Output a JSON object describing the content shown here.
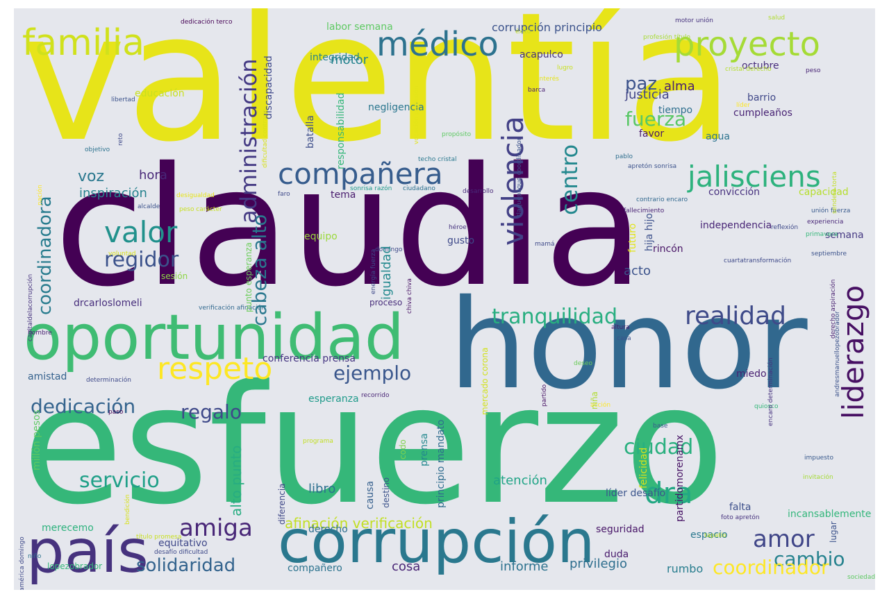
{
  "words": [
    {
      "text": "valentía",
      "color": "#e7e419"
    },
    {
      "text": "claudia",
      "color": "#440154"
    },
    {
      "text": "esfuerzo",
      "color": "#35b779"
    },
    {
      "text": "honor",
      "color": "#31688e"
    },
    {
      "text": "oportunidad",
      "color": "#3fbc73"
    },
    {
      "text": "corrupción",
      "color": "#2a788e"
    },
    {
      "text": "país",
      "color": "#46327e"
    },
    {
      "text": "familia",
      "color": "#d0e11c"
    },
    {
      "text": "médico",
      "color": "#2c728e"
    },
    {
      "text": "proyecto",
      "color": "#a5db36"
    },
    {
      "text": "compañera",
      "color": "#365c8d"
    },
    {
      "text": "jalisciens",
      "color": "#2db27d"
    },
    {
      "text": "valor",
      "color": "#21918c"
    },
    {
      "text": "respeto",
      "color": "#fde725"
    },
    {
      "text": "tranquilidad",
      "color": "#28ae80"
    },
    {
      "text": "realidad",
      "color": "#3e4a89"
    },
    {
      "text": "liderazgo",
      "color": "#471063"
    },
    {
      "text": "violencia",
      "color": "#424086"
    },
    {
      "text": "administración",
      "color": "#443a83"
    },
    {
      "text": "coordinadora",
      "color": "#287c8e"
    },
    {
      "text": "cabeza alto",
      "color": "#2a788e"
    },
    {
      "text": "centro",
      "color": "#23888e"
    },
    {
      "text": "regidor",
      "color": "#3b528b"
    },
    {
      "text": "ejemplo",
      "color": "#39568c"
    },
    {
      "text": "dedicación",
      "color": "#33638d"
    },
    {
      "text": "regalo",
      "color": "#3e4989"
    },
    {
      "text": "amiga",
      "color": "#482677"
    },
    {
      "text": "amor",
      "color": "#404688"
    },
    {
      "text": "dra",
      "color": "#22a884"
    },
    {
      "text": "ciudad",
      "color": "#2ab07f"
    },
    {
      "text": "servicio",
      "color": "#1fa088"
    },
    {
      "text": "solidaridad",
      "color": "#33638d"
    },
    {
      "text": "cambio",
      "color": "#26828e"
    },
    {
      "text": "coordinador",
      "color": "#fde725"
    },
    {
      "text": "fuerza",
      "color": "#58c765"
    },
    {
      "text": "paz",
      "color": "#3b528b"
    },
    {
      "text": "alma",
      "color": "#481f70"
    },
    {
      "text": "justicia",
      "color": "#414487"
    },
    {
      "text": "voz",
      "color": "#2a788e"
    },
    {
      "text": "hora",
      "color": "#482878"
    },
    {
      "text": "inspiración",
      "color": "#26828e"
    },
    {
      "text": "afinación verificación",
      "color": "#c2df23"
    },
    {
      "text": "alto punto",
      "color": "#27ad81"
    },
    {
      "text": "acto",
      "color": "#3b528b"
    },
    {
      "text": "atención",
      "color": "#20a486"
    },
    {
      "text": "libro",
      "color": "#2d708e"
    },
    {
      "text": "privilegio",
      "color": "#2e6e8e"
    },
    {
      "text": "informe",
      "color": "#2c728e"
    },
    {
      "text": "cosa",
      "color": "#482475"
    },
    {
      "text": "rumbo",
      "color": "#287d8e"
    },
    {
      "text": "motor",
      "color": "#25838e"
    },
    {
      "text": "corrupción principio",
      "color": "#3b528b"
    },
    {
      "text": "labor semana",
      "color": "#5ec962"
    },
    {
      "text": "integridad",
      "color": "#26828e"
    },
    {
      "text": "acapulco",
      "color": "#46337f"
    },
    {
      "text": "octubre",
      "color": "#472d7b"
    },
    {
      "text": "barrio",
      "color": "#3f4788"
    },
    {
      "text": "cumpleaños",
      "color": "#482374"
    },
    {
      "text": "tiempo",
      "color": "#2e6f8e"
    },
    {
      "text": "favor",
      "color": "#481769"
    },
    {
      "text": "agua",
      "color": "#2c738e"
    },
    {
      "text": "negligencia",
      "color": "#2a768e"
    },
    {
      "text": "educación",
      "color": "#c8e020"
    },
    {
      "text": "batalla",
      "color": "#3d4e8a"
    },
    {
      "text": "convicción",
      "color": "#46307e"
    },
    {
      "text": "capacidad",
      "color": "#b5de2b"
    },
    {
      "text": "tema",
      "color": "#481b6d"
    },
    {
      "text": "independencia",
      "color": "#482576"
    },
    {
      "text": "semana",
      "color": "#453882"
    },
    {
      "text": "rincón",
      "color": "#471365"
    },
    {
      "text": "gusto",
      "color": "#3e4989"
    },
    {
      "text": "equipo",
      "color": "#9bd93c"
    },
    {
      "text": "igualdad",
      "color": "#23898e"
    },
    {
      "text": "amistad",
      "color": "#34618d"
    },
    {
      "text": "conferencia prensa",
      "color": "#453581"
    },
    {
      "text": "esperanza",
      "color": "#1f9a8a"
    },
    {
      "text": "miedo",
      "color": "#482071"
    },
    {
      "text": "felicidad",
      "color": "#d8e219"
    },
    {
      "text": "líder desafío",
      "color": "#3a548c"
    },
    {
      "text": "falta",
      "color": "#3c4f8a"
    },
    {
      "text": "merecemo",
      "color": "#2db27d"
    },
    {
      "text": "equitativo",
      "color": "#3f4889"
    },
    {
      "text": "derecho",
      "color": "#2e6e8e"
    },
    {
      "text": "seguridad",
      "color": "#481668"
    },
    {
      "text": "espacio",
      "color": "#2a788e"
    },
    {
      "text": "incansablemente",
      "color": "#32b67a"
    },
    {
      "text": "compañero",
      "color": "#2c738e"
    },
    {
      "text": "duda",
      "color": "#481a6c"
    },
    {
      "text": "lopezobrador",
      "color": "#35b779"
    },
    {
      "text": "drcarloslomeli",
      "color": "#472e7c"
    },
    {
      "text": "sesión",
      "color": "#8ed645"
    },
    {
      "text": "millón pesos",
      "color": "#5ec962"
    },
    {
      "text": "discapacidad",
      "color": "#3e4989"
    },
    {
      "text": "responsabilidad",
      "color": "#34b679"
    },
    {
      "text": "futuro",
      "color": "#e2e418"
    },
    {
      "text": "hija hijo",
      "color": "#3c508b"
    },
    {
      "text": "punto esperanza",
      "color": "#6ccd5a"
    },
    {
      "text": "mercado corona",
      "color": "#d2e21b"
    },
    {
      "text": "principio mandato",
      "color": "#2f6c8e"
    },
    {
      "text": "partidomorenamx",
      "color": "#471365"
    },
    {
      "text": "niña",
      "color": "#b0dd2f"
    },
    {
      "text": "prensa",
      "color": "#23888e"
    },
    {
      "text": "causa",
      "color": "#355f8d"
    },
    {
      "text": "diferencia",
      "color": "#3f4788"
    },
    {
      "text": "destino",
      "color": "#3b528b"
    },
    {
      "text": "codo",
      "color": "#7fd34e"
    },
    {
      "text": "lugar",
      "color": "#3b528b"
    },
    {
      "text": "chiva chiva",
      "color": "#471164"
    },
    {
      "text": "proceso",
      "color": "#472c7a"
    },
    {
      "text": "dedicación terco",
      "color": "#440154"
    },
    {
      "text": "éxito",
      "color": "#c2df23"
    },
    {
      "text": "motor unión",
      "color": "#46327e"
    },
    {
      "text": "profesión título",
      "color": "#a8db34"
    },
    {
      "text": "salud",
      "color": "#b0dd2f"
    },
    {
      "text": "cristal derecho",
      "color": "#b5de2b"
    },
    {
      "text": "peso",
      "color": "#482475"
    },
    {
      "text": "lugro",
      "color": "#c8e020"
    },
    {
      "text": "interés",
      "color": "#e5e419"
    },
    {
      "text": "barca",
      "color": "#481f70"
    },
    {
      "text": "libertad",
      "color": "#3b528b"
    },
    {
      "text": "reto",
      "color": "#3e4989"
    },
    {
      "text": "propósito",
      "color": "#5ec962"
    },
    {
      "text": "líder",
      "color": "#fde725"
    },
    {
      "text": "sendero torta",
      "color": "#c2df23"
    },
    {
      "text": "objetivo",
      "color": "#2c728e"
    },
    {
      "text": "pablo",
      "color": "#2e6e8e"
    },
    {
      "text": "apretón sonrisa",
      "color": "#3b528b"
    },
    {
      "text": "techo cristal",
      "color": "#2a788e"
    },
    {
      "text": "sonrisa razón",
      "color": "#1f9a8a"
    },
    {
      "text": "ciudadano",
      "color": "#2d708e"
    },
    {
      "text": "faro",
      "color": "#3e4989"
    },
    {
      "text": "desarrollo",
      "color": "#482878"
    },
    {
      "text": "contrario encaro",
      "color": "#31688e"
    },
    {
      "text": "fallecimiento",
      "color": "#482173"
    },
    {
      "text": "alcalde",
      "color": "#3b528b"
    },
    {
      "text": "héroe",
      "color": "#46327e"
    },
    {
      "text": "reflexión",
      "color": "#3e4989"
    },
    {
      "text": "unión fuerza",
      "color": "#38598c"
    },
    {
      "text": "experiencia",
      "color": "#482677"
    },
    {
      "text": "primavera",
      "color": "#35b779"
    },
    {
      "text": "domingo",
      "color": "#3e4a89"
    },
    {
      "text": "voluntad",
      "color": "#d8e219"
    },
    {
      "text": "mamá",
      "color": "#3e4989"
    },
    {
      "text": "septiembre",
      "color": "#3b528b"
    },
    {
      "text": "cuartatransformación",
      "color": "#3e4989"
    },
    {
      "text": "verificación afinación",
      "color": "#31688e"
    },
    {
      "text": "hombre",
      "color": "#481f70"
    },
    {
      "text": "casa",
      "color": "#3b528b"
    },
    {
      "text": "altura",
      "color": "#481a6c"
    },
    {
      "text": "deseo",
      "color": "#6ccd5a"
    },
    {
      "text": "determinación",
      "color": "#3e4989"
    },
    {
      "text": "recorrido",
      "color": "#482475"
    },
    {
      "text": "partido",
      "color": "#471164"
    },
    {
      "text": "acción",
      "color": "#fde725"
    },
    {
      "text": "quiosco",
      "color": "#35b779"
    },
    {
      "text": "paso",
      "color": "#440154"
    },
    {
      "text": "base",
      "color": "#38598c"
    },
    {
      "text": "programa",
      "color": "#c2df23"
    },
    {
      "text": "impuesto",
      "color": "#38598c"
    },
    {
      "text": "invitación",
      "color": "#a5db36"
    },
    {
      "text": "foto apretón",
      "color": "#46327e"
    },
    {
      "text": "tapatío",
      "color": "#b5de2b"
    },
    {
      "text": "título promesa",
      "color": "#c8e020"
    },
    {
      "text": "desafío dificultad",
      "color": "#3e4989"
    },
    {
      "text": "niño",
      "color": "#2c728e"
    },
    {
      "text": "sociedad colega",
      "color": "#5ec962"
    },
    {
      "text": "nación",
      "color": "#fde725"
    },
    {
      "text": "desigualdad",
      "color": "#e7e419"
    },
    {
      "text": "peso carácter",
      "color": "#c8e020"
    },
    {
      "text": "capitaldelacorrupción",
      "color": "#46327e"
    },
    {
      "text": "dificultad contrario",
      "color": "#d8e219"
    },
    {
      "text": "vocación profesión",
      "color": "#e2e418"
    },
    {
      "text": "tlaquepaque coordinador",
      "color": "#3b528b"
    },
    {
      "text": "energía fuerza",
      "color": "#3e4989"
    },
    {
      "text": "derecho aspiración",
      "color": "#481f70"
    },
    {
      "text": "encaro determinación",
      "color": "#46327e"
    },
    {
      "text": "andresmanuellopezobrador",
      "color": "#3b528b"
    },
    {
      "text": "américa domingo",
      "color": "#3e4989"
    },
    {
      "text": "bendición",
      "color": "#d8e219"
    }
  ]
}
